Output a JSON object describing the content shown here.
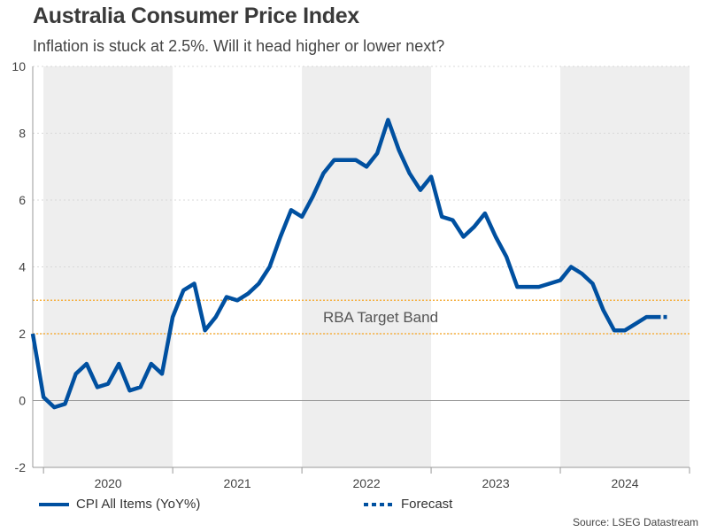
{
  "title": "Australia Consumer Price Index",
  "subtitle": "Inflation is stuck at 2.5%. Will it head higher or lower next?",
  "source": "Source: LSEG Datastream",
  "legend": {
    "actual": "CPI All Items (YoY%)",
    "forecast": "Forecast"
  },
  "colors": {
    "line": "#0050a0",
    "target_band": "#f5b042",
    "shading": "#eeeeee"
  },
  "chart_data": {
    "type": "line",
    "title": "Australia Consumer Price Index",
    "ylim": [
      -2,
      10
    ],
    "yticks": [
      -2,
      0,
      2,
      4,
      6,
      8,
      10
    ],
    "xlim": [
      "2019-12",
      "2024-12"
    ],
    "year_labels": [
      "2020",
      "2021",
      "2022",
      "2023",
      "2024"
    ],
    "grid": "horizontal dotted",
    "shaded_years": [
      "2020",
      "2022",
      "2024"
    ],
    "annotations": [
      {
        "text": "RBA Target Band",
        "band": [
          2,
          3
        ]
      }
    ],
    "series": [
      {
        "name": "CPI All Items (YoY%)",
        "style": "solid",
        "x": [
          "2019-12",
          "2020-01",
          "2020-02",
          "2020-03",
          "2020-04",
          "2020-05",
          "2020-06",
          "2020-07",
          "2020-08",
          "2020-09",
          "2020-10",
          "2020-11",
          "2020-12",
          "2021-01",
          "2021-02",
          "2021-03",
          "2021-04",
          "2021-05",
          "2021-06",
          "2021-07",
          "2021-08",
          "2021-09",
          "2021-10",
          "2021-11",
          "2021-12",
          "2022-01",
          "2022-02",
          "2022-03",
          "2022-04",
          "2022-05",
          "2022-06",
          "2022-07",
          "2022-08",
          "2022-09",
          "2022-10",
          "2022-11",
          "2022-12",
          "2023-01",
          "2023-02",
          "2023-03",
          "2023-04",
          "2023-05",
          "2023-06",
          "2023-07",
          "2023-08",
          "2023-09",
          "2023-10",
          "2023-11",
          "2023-12",
          "2024-01",
          "2024-02",
          "2024-03",
          "2024-04",
          "2024-05",
          "2024-06",
          "2024-07",
          "2024-08",
          "2024-09",
          "2024-10"
        ],
        "values": [
          2.0,
          0.1,
          -0.2,
          -0.1,
          0.8,
          1.1,
          0.4,
          0.5,
          1.1,
          0.3,
          0.4,
          1.1,
          0.8,
          2.5,
          3.3,
          3.5,
          2.1,
          2.5,
          3.1,
          3.0,
          3.2,
          3.5,
          4.0,
          4.9,
          5.7,
          5.5,
          6.1,
          6.8,
          7.2,
          7.2,
          7.2,
          7.0,
          7.4,
          8.4,
          7.5,
          6.8,
          6.3,
          6.7,
          5.5,
          5.4,
          4.9,
          5.2,
          5.6,
          4.9,
          4.3,
          3.4,
          3.4,
          3.4,
          3.5,
          3.6,
          4.0,
          3.8,
          3.5,
          2.7,
          2.1,
          2.1,
          2.3,
          2.5,
          2.5
        ]
      },
      {
        "name": "Forecast",
        "style": "dashed",
        "x": [
          "2024-10",
          "2024-11"
        ],
        "values": [
          2.5,
          2.5
        ]
      }
    ]
  }
}
